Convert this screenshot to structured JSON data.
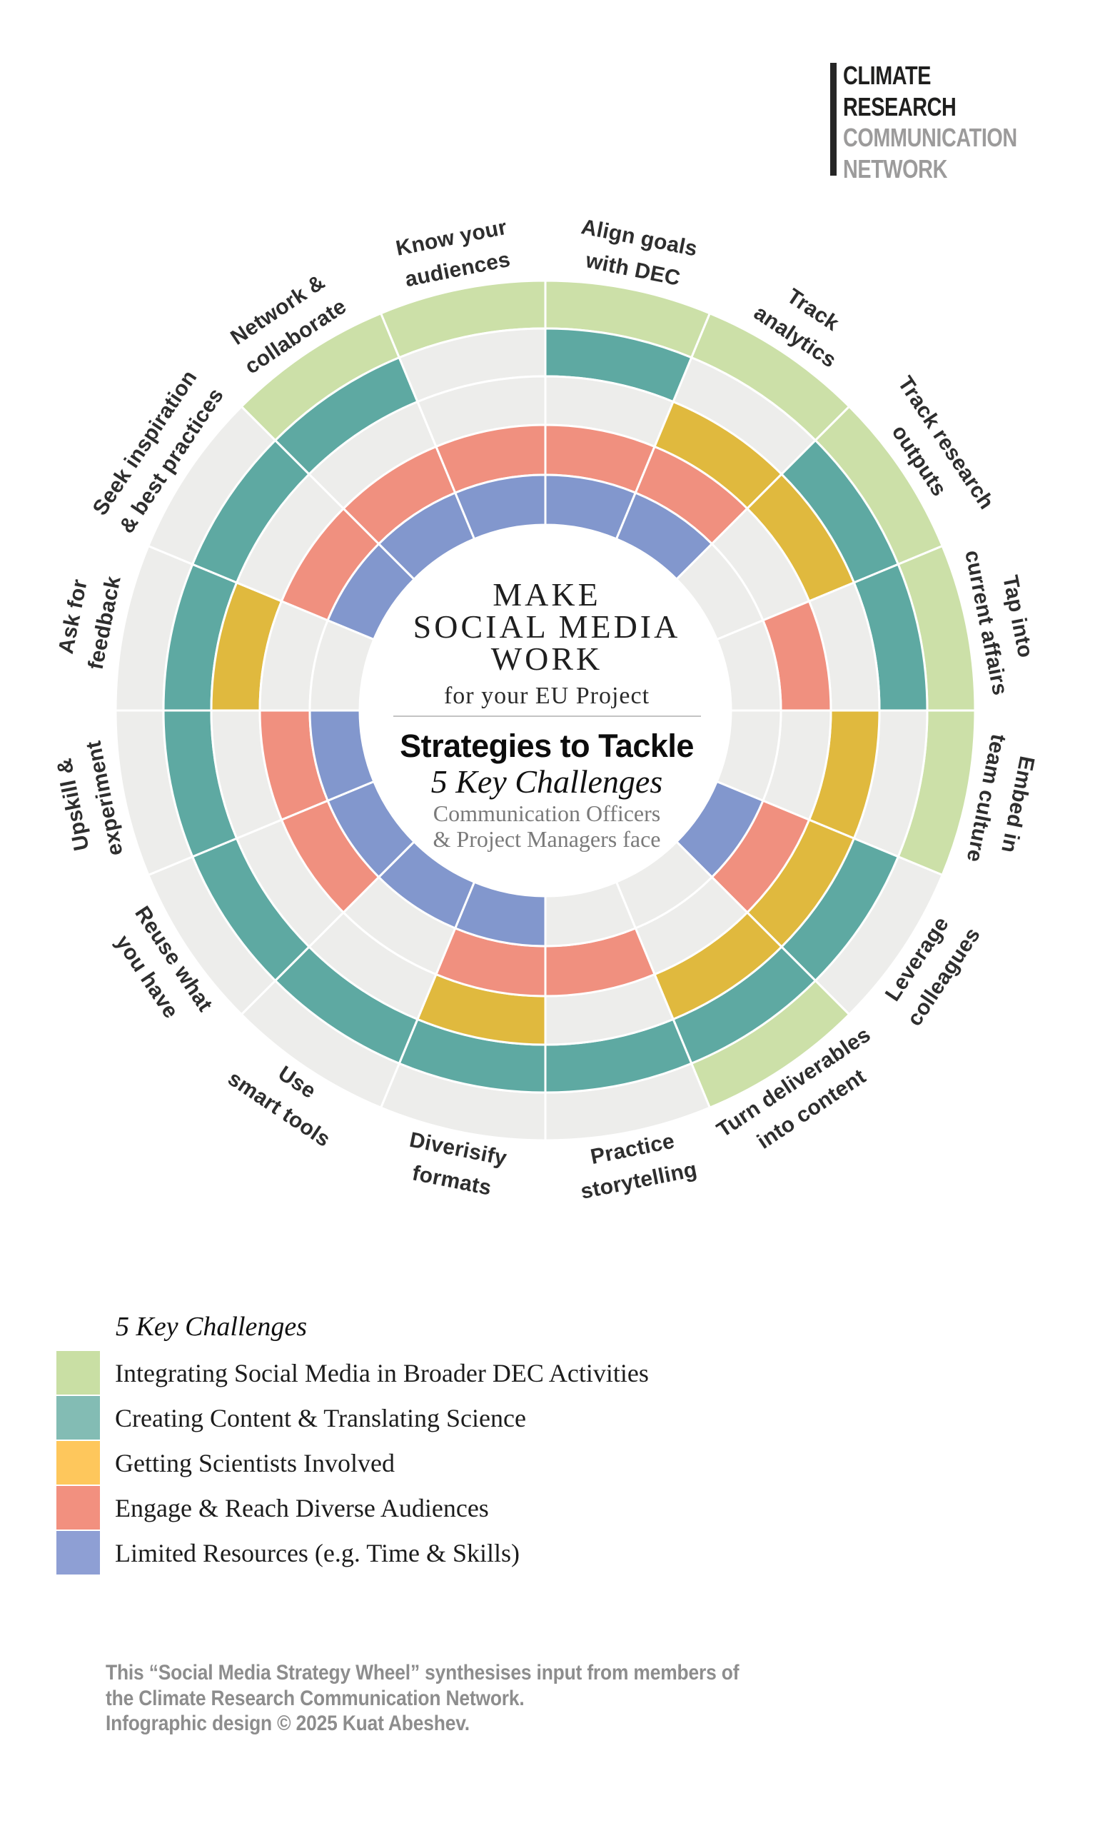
{
  "logo": {
    "lines": [
      {
        "text": "CLIMATE",
        "tone": "dark"
      },
      {
        "text": "RESEARCH",
        "tone": "dark"
      },
      {
        "text": "COMMUNICATION",
        "tone": "gray"
      },
      {
        "text": "NETWORK",
        "tone": "gray"
      }
    ]
  },
  "center": {
    "title": "MAKE\nSOCIAL MEDIA\nWORK",
    "subtitle": "for your EU Project",
    "heading": "Strategies to Tackle",
    "subheading": "5 Key Challenges",
    "audience": "Communication Officers\n& Project Managers face"
  },
  "legend": {
    "title": "5 Key Challenges"
  },
  "challenges": [
    {
      "label": "Integrating Social Media in Broader DEC Activities",
      "color": "#cce0a8",
      "legend_color": "#c9dfa4"
    },
    {
      "label": "Creating Content & Translating Science",
      "color": "#5ea9a2",
      "legend_color": "#83bcb4"
    },
    {
      "label": "Getting Scientists Involved",
      "color": "#e0b93e",
      "legend_color": "#fec75c"
    },
    {
      "label": "Engage & Reach Diverse Audiences",
      "color": "#f0907f",
      "legend_color": "#f2907f"
    },
    {
      "label": "Limited Resources (e.g. Time & Skills)",
      "color": "#8297cd",
      "legend_color": "#8e9fd4"
    }
  ],
  "wheel": {
    "empty_color": "#ededeb",
    "strategies": [
      {
        "label": "Align goals\nwith DEC",
        "tackles": [
          1,
          1,
          0,
          1,
          1
        ]
      },
      {
        "label": "Track\nanalytics",
        "tackles": [
          1,
          0,
          1,
          1,
          1
        ]
      },
      {
        "label": "Track research\noutputs",
        "tackles": [
          1,
          1,
          1,
          0,
          0
        ]
      },
      {
        "label": "Tap into\ncurrent affairs",
        "tackles": [
          1,
          1,
          0,
          1,
          0
        ]
      },
      {
        "label": "Embed in\nteam culture",
        "tackles": [
          1,
          0,
          1,
          0,
          0
        ]
      },
      {
        "label": "Leverage\ncolleagues",
        "tackles": [
          0,
          1,
          1,
          1,
          1
        ]
      },
      {
        "label": "Turn deliverables\ninto content",
        "tackles": [
          1,
          1,
          1,
          0,
          0
        ]
      },
      {
        "label": "Practice\nstorytelling",
        "tackles": [
          0,
          1,
          0,
          1,
          0
        ]
      },
      {
        "label": "Diverisify\nformats",
        "tackles": [
          0,
          1,
          1,
          1,
          1
        ]
      },
      {
        "label": "Use\nsmart tools",
        "tackles": [
          0,
          1,
          0,
          0,
          1
        ]
      },
      {
        "label": "Reuse what\nyou have",
        "tackles": [
          0,
          1,
          0,
          1,
          1
        ]
      },
      {
        "label": "Upskill &\nexperiment",
        "tackles": [
          0,
          1,
          0,
          1,
          1
        ]
      },
      {
        "label": "Ask for\nfeedback",
        "tackles": [
          0,
          1,
          1,
          0,
          0
        ]
      },
      {
        "label": "Seek inspiration\n& best practices",
        "tackles": [
          0,
          1,
          0,
          1,
          1
        ]
      },
      {
        "label": "Network &\ncollaborate",
        "tackles": [
          1,
          1,
          0,
          1,
          1
        ]
      },
      {
        "label": "Know your\naudiences",
        "tackles": [
          1,
          0,
          0,
          1,
          1
        ]
      }
    ]
  },
  "footer": {
    "text": "This “Social Media Strategy Wheel” synthesises input from members of\nthe Climate Research Communication Network.\nInfographic design © 2025 Kuat Abeshev."
  }
}
